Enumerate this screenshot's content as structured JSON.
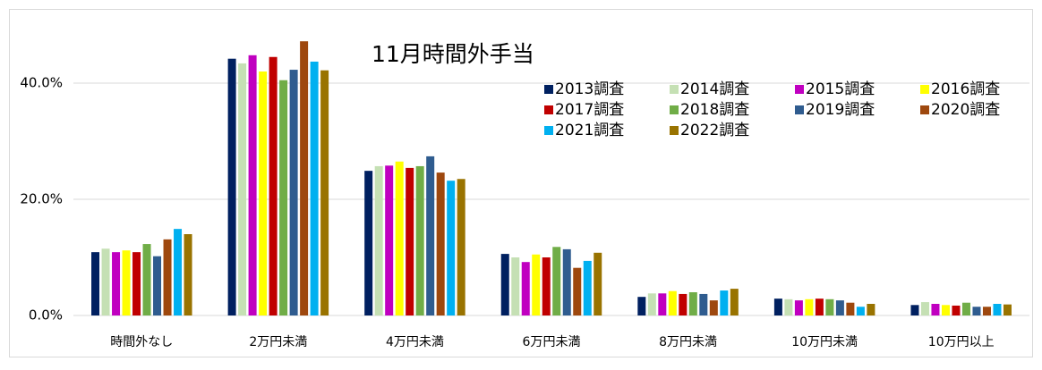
{
  "chart_data": {
    "type": "bar",
    "title": "11月時間外手当",
    "categories": [
      "時間外なし",
      "2万円未満",
      "4万円未満",
      "6万円未満",
      "8万円未満",
      "10万円未満",
      "10万円以上"
    ],
    "series": [
      {
        "name": "2013調査",
        "color": "#002060",
        "values": [
          10.9,
          44.2,
          24.9,
          10.6,
          3.2,
          2.9,
          1.8
        ]
      },
      {
        "name": "2014調査",
        "color": "#c5e0b4",
        "values": [
          11.5,
          43.4,
          25.7,
          10.0,
          3.8,
          2.8,
          2.3
        ]
      },
      {
        "name": "2015調査",
        "color": "#c000c0",
        "values": [
          10.9,
          44.8,
          25.8,
          9.2,
          3.8,
          2.6,
          2.0
        ]
      },
      {
        "name": "2016調査",
        "color": "#ffff00",
        "values": [
          11.2,
          42.0,
          26.5,
          10.5,
          4.2,
          2.8,
          1.8
        ]
      },
      {
        "name": "2017調査",
        "color": "#c00000",
        "values": [
          10.9,
          44.5,
          25.4,
          10.0,
          3.7,
          2.9,
          1.7
        ]
      },
      {
        "name": "2018調査",
        "color": "#70ad47",
        "values": [
          12.3,
          40.5,
          25.7,
          11.8,
          4.0,
          2.8,
          2.2
        ]
      },
      {
        "name": "2019調査",
        "color": "#2f5c8f",
        "values": [
          10.2,
          42.3,
          27.4,
          11.4,
          3.7,
          2.6,
          1.5
        ]
      },
      {
        "name": "2020調査",
        "color": "#9e480e",
        "values": [
          13.1,
          47.2,
          24.6,
          8.2,
          2.6,
          2.2,
          1.5
        ]
      },
      {
        "name": "2021調査",
        "color": "#00b0f0",
        "values": [
          14.9,
          43.7,
          23.2,
          9.4,
          4.3,
          1.5,
          2.0
        ]
      },
      {
        "name": "2022調査",
        "color": "#997300",
        "values": [
          14.0,
          42.2,
          23.5,
          10.8,
          4.6,
          2.0,
          1.9
        ]
      }
    ],
    "ylim": [
      0,
      50
    ],
    "yticks": [
      {
        "value": 0,
        "label": "0.0%"
      },
      {
        "value": 20,
        "label": "20.0%"
      },
      {
        "value": 40,
        "label": "40.0%"
      }
    ],
    "grid": true,
    "legend": "top-right"
  }
}
